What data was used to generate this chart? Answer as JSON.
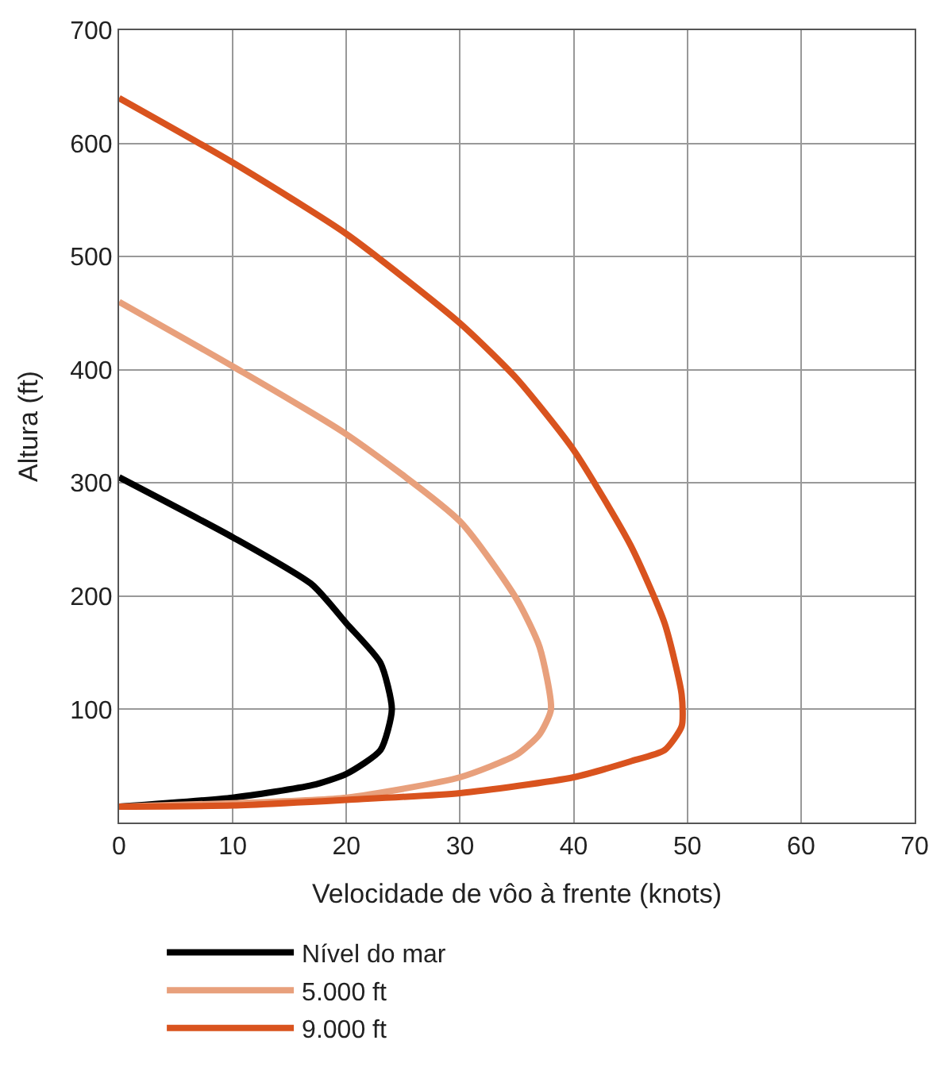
{
  "chart_data": {
    "type": "line",
    "xlabel": "Velocidade de vôo à frente (knots)",
    "ylabel": "Altura (ft)",
    "xlim": [
      0,
      70
    ],
    "xticks": [
      0,
      10,
      20,
      30,
      40,
      50,
      60,
      70
    ],
    "ylim": [
      0,
      700
    ],
    "yticks": [
      100,
      200,
      300,
      400,
      500,
      600,
      700
    ],
    "grid": true,
    "legend": "bottom",
    "marker": "none",
    "line_style": "solid",
    "series": [
      {
        "name": "Nível do mar",
        "color": "#000000",
        "x": [
          0,
          10,
          17,
          20,
          23,
          24,
          23,
          20,
          17,
          10,
          0
        ],
        "values": [
          305,
          252,
          210,
          176,
          141,
          100,
          64,
          43,
          33,
          22,
          14
        ]
      },
      {
        "name": "5.000 ft",
        "color": "#e8a07c",
        "x": [
          0,
          10,
          20,
          30,
          35,
          37,
          38,
          37,
          35,
          30,
          20,
          10,
          0
        ],
        "values": [
          460,
          403,
          343,
          266,
          197,
          155,
          100,
          78,
          60,
          40,
          22,
          17,
          14
        ]
      },
      {
        "name": "9.000 ft",
        "color": "#d9531e",
        "x": [
          0,
          10,
          20,
          30,
          35,
          40,
          45,
          48,
          49.5,
          49.5,
          48,
          45,
          40,
          30,
          20,
          10,
          0
        ],
        "values": [
          640,
          583,
          520,
          441,
          392,
          329,
          245,
          176,
          113,
          85,
          64,
          54,
          40,
          26,
          20,
          15,
          14
        ]
      }
    ]
  }
}
